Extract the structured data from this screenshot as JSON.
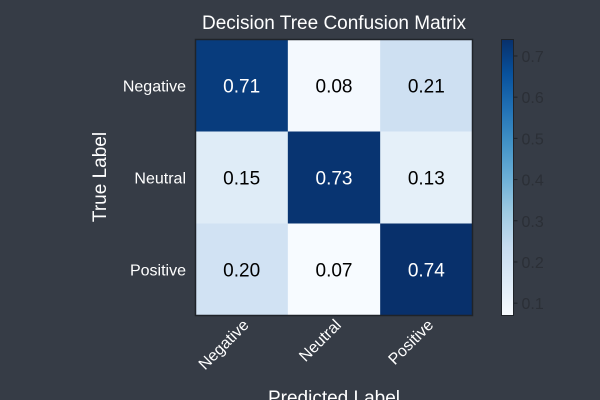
{
  "chart_data": {
    "type": "heatmap",
    "title": "Decision Tree Confusion Matrix",
    "xlabel": "Predicted Label",
    "ylabel": "True Label",
    "x_categories": [
      "Negative",
      "Neutral",
      "Positive"
    ],
    "y_categories": [
      "Negative",
      "Neutral",
      "Positive"
    ],
    "values": [
      [
        0.71,
        0.08,
        0.21
      ],
      [
        0.15,
        0.73,
        0.13
      ],
      [
        0.2,
        0.07,
        0.74
      ]
    ],
    "value_labels": [
      [
        "0.71",
        "0.08",
        "0.21"
      ],
      [
        "0.15",
        "0.73",
        "0.13"
      ],
      [
        "0.20",
        "0.07",
        "0.74"
      ]
    ],
    "colormap": "Blues",
    "colorbar": {
      "range": [
        0.07,
        0.74
      ],
      "ticks": [
        0.1,
        0.2,
        0.3,
        0.4,
        0.5,
        0.6,
        0.7
      ],
      "tick_labels": [
        "0.1",
        "0.2",
        "0.3",
        "0.4",
        "0.5",
        "0.6",
        "0.7"
      ]
    },
    "grid": false,
    "colors": {
      "background": "#363c46",
      "text": "#ffffff",
      "colorbar_text": "#2b2f36",
      "cmap_low": "#f7fbff",
      "cmap_high": "#08306b"
    }
  }
}
